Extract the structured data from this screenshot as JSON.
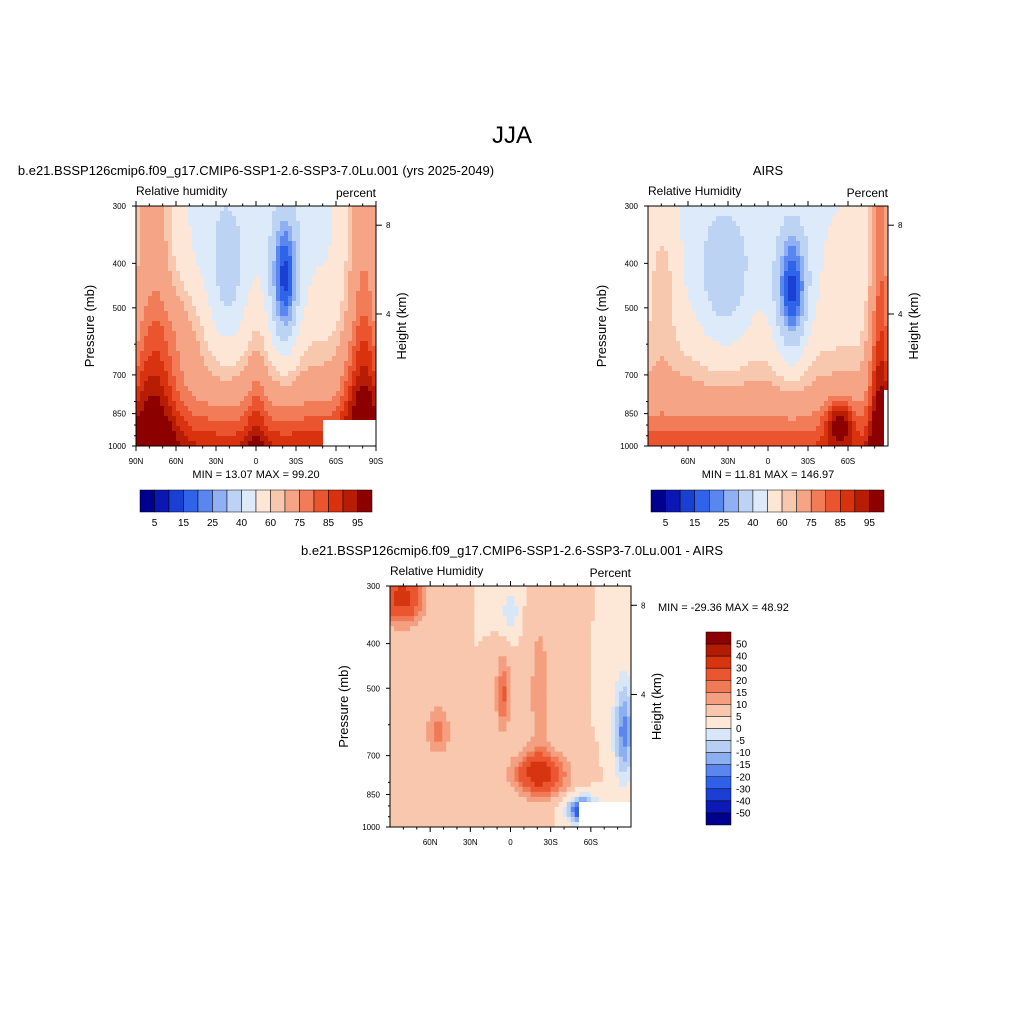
{
  "page_title": "JJA",
  "colors": {
    "rh_palette": [
      "#00008e",
      "#0a17b4",
      "#1a3fd3",
      "#2f63ea",
      "#5a86ef",
      "#8fb0f2",
      "#bdd3f4",
      "#ddeaf9",
      "#fde6d6",
      "#f8c8ae",
      "#f5a486",
      "#f27c57",
      "#ea5530",
      "#d9320f",
      "#b71c04",
      "#8d0000"
    ],
    "diff_palette": [
      "#00008e",
      "#0b19b6",
      "#1c3ed4",
      "#2f60ea",
      "#5b86ef",
      "#8caff2",
      "#b7cff3",
      "#d8e7f8",
      "#fde8d8",
      "#f8c7ad",
      "#f49f80",
      "#f07a55",
      "#ea5630",
      "#d63510",
      "#b31c04",
      "#8b0000"
    ]
  },
  "chart_data": [
    {
      "type": "heatmap",
      "panel": "model",
      "title": "b.e21.BSSP126cmip6.f09_g17.CMIP6-SSP1-2.6-SSP3-7.0Lu.001 (yrs 2025-2049)",
      "left_label": "Relative humidity",
      "right_label": "percent",
      "ylabel": "Pressure (mb)",
      "y2label": "Height (km)",
      "y_ticks": [
        "300",
        "400",
        "500",
        "700",
        "850",
        "1000"
      ],
      "y2_ticks": [
        "8",
        "4"
      ],
      "x_ticks": [
        "90N",
        "60N",
        "30N",
        "0",
        "30S",
        "60S",
        "90S"
      ],
      "stats": "MIN =  13.07  MAX =  99.20",
      "colorbar_labels": [
        "5",
        "15",
        "25",
        "40",
        "60",
        "75",
        "85",
        "95"
      ],
      "ylim": [
        1000,
        300
      ],
      "xlim": [
        90,
        -90
      ]
    },
    {
      "type": "heatmap",
      "panel": "obs",
      "title": "AIRS",
      "left_label": "Relative Humidity",
      "right_label": "Percent",
      "ylabel": "Pressure (mb)",
      "y2label": "Height (km)",
      "y_ticks": [
        "300",
        "400",
        "500",
        "700",
        "850",
        "1000"
      ],
      "y2_ticks": [
        "8",
        "4"
      ],
      "x_ticks": [
        "60N",
        "30N",
        "0",
        "30S",
        "60S"
      ],
      "stats": "MIN =  11.81  MAX = 146.97",
      "colorbar_labels": [
        "5",
        "15",
        "25",
        "40",
        "60",
        "75",
        "85",
        "95"
      ],
      "ylim": [
        1000,
        300
      ]
    },
    {
      "type": "heatmap",
      "panel": "difference",
      "title": "b.e21.BSSP126cmip6.f09_g17.CMIP6-SSP1-2.6-SSP3-7.0Lu.001 - AIRS",
      "left_label": "Relative Humidity",
      "right_label": "Percent",
      "ylabel": "Pressure (mb)",
      "y2label": "Height (km)",
      "y_ticks": [
        "300",
        "400",
        "500",
        "700",
        "850",
        "1000"
      ],
      "y2_ticks": [
        "8",
        "4"
      ],
      "x_ticks": [
        "60N",
        "30N",
        "0",
        "30S",
        "60S"
      ],
      "stats": "MIN = -29.36  MAX =  48.92",
      "colorbar_labels": [
        "50",
        "40",
        "30",
        "20",
        "15",
        "10",
        "5",
        "0",
        "-5",
        "-10",
        "-15",
        "-20",
        "-30",
        "-40",
        "-50"
      ],
      "ylim": [
        1000,
        300
      ]
    }
  ]
}
